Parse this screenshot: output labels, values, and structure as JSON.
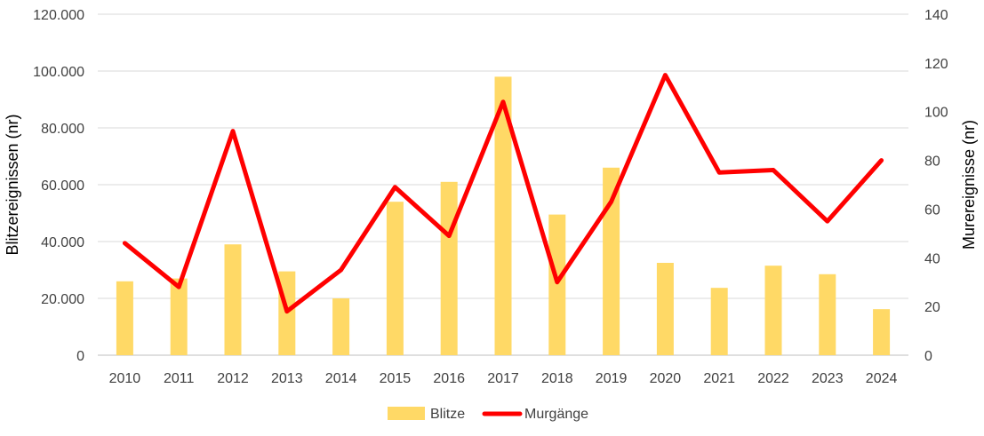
{
  "chart_data": {
    "type": "bar+line",
    "categories": [
      "2010",
      "2011",
      "2012",
      "2013",
      "2014",
      "2015",
      "2016",
      "2017",
      "2018",
      "2019",
      "2020",
      "2021",
      "2022",
      "2023",
      "2024"
    ],
    "series": [
      {
        "name": "Blitze",
        "type": "bar",
        "axis": "left",
        "color": "#FFD966",
        "values": [
          26000,
          27000,
          39000,
          29500,
          20000,
          54000,
          61000,
          98000,
          49500,
          66000,
          32500,
          23700,
          31500,
          28500,
          16200
        ]
      },
      {
        "name": "Murgänge",
        "type": "line",
        "axis": "right",
        "color": "#FF0000",
        "values": [
          46,
          28,
          92,
          18,
          35,
          69,
          49,
          104,
          30,
          63,
          115,
          75,
          76,
          55,
          80
        ]
      }
    ],
    "y_left": {
      "label": "Blitzereignissen (nr)",
      "min": 0,
      "max": 120000,
      "step": 20000,
      "tick_labels": [
        "0",
        "20.000",
        "40.000",
        "60.000",
        "80.000",
        "100.000",
        "120.000"
      ]
    },
    "y_right": {
      "label": "Murereignisse (nr)",
      "min": 0,
      "max": 140,
      "step": 20,
      "tick_labels": [
        "0",
        "20",
        "40",
        "60",
        "80",
        "100",
        "120",
        "140"
      ]
    },
    "grid": true,
    "legend_position": "bottom"
  }
}
